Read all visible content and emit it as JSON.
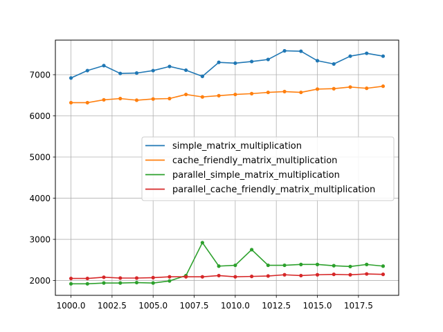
{
  "chart_data": {
    "type": "line",
    "title": "",
    "xlabel": "",
    "ylabel": "",
    "xlim": [
      999.05,
      1019.95
    ],
    "ylim": [
      1640,
      7840
    ],
    "grid": true,
    "legend_position": "center-right",
    "x": [
      1000,
      1001,
      1002,
      1003,
      1004,
      1005,
      1006,
      1007,
      1008,
      1009,
      1010,
      1011,
      1012,
      1013,
      1014,
      1015,
      1016,
      1017,
      1018,
      1019
    ],
    "x_ticks": [
      1000.0,
      1002.5,
      1005.0,
      1007.5,
      1010.0,
      1012.5,
      1015.0,
      1017.5
    ],
    "x_tick_labels": [
      "1000.0",
      "1002.5",
      "1005.0",
      "1007.5",
      "1010.0",
      "1012.5",
      "1015.0",
      "1017.5"
    ],
    "y_ticks": [
      2000,
      3000,
      4000,
      5000,
      6000,
      7000
    ],
    "y_tick_labels": [
      "2000",
      "3000",
      "4000",
      "5000",
      "6000",
      "7000"
    ],
    "series": [
      {
        "name": "simple_matrix_multiplication",
        "color": "#1f77b4",
        "values": [
          6920,
          7100,
          7220,
          7030,
          7040,
          7100,
          7200,
          7110,
          6960,
          7300,
          7280,
          7320,
          7370,
          7580,
          7570,
          7340,
          7260,
          7450,
          7520,
          7450
        ]
      },
      {
        "name": "cache_friendly_matrix_multiplication",
        "color": "#ff7f0e",
        "values": [
          6320,
          6320,
          6390,
          6420,
          6380,
          6410,
          6420,
          6520,
          6460,
          6490,
          6520,
          6540,
          6570,
          6590,
          6570,
          6650,
          6660,
          6700,
          6670,
          6720
        ]
      },
      {
        "name": "parallel_simple_matrix_multiplication",
        "color": "#2ca02c",
        "values": [
          1920,
          1920,
          1940,
          1940,
          1950,
          1940,
          1990,
          2120,
          2920,
          2350,
          2370,
          2750,
          2370,
          2370,
          2390,
          2390,
          2360,
          2340,
          2390,
          2350
        ]
      },
      {
        "name": "parallel_cache_friendly_matrix_multiplication",
        "color": "#d62728",
        "values": [
          2050,
          2050,
          2080,
          2060,
          2060,
          2070,
          2090,
          2090,
          2090,
          2120,
          2090,
          2100,
          2110,
          2140,
          2120,
          2140,
          2150,
          2140,
          2160,
          2150
        ]
      }
    ]
  }
}
